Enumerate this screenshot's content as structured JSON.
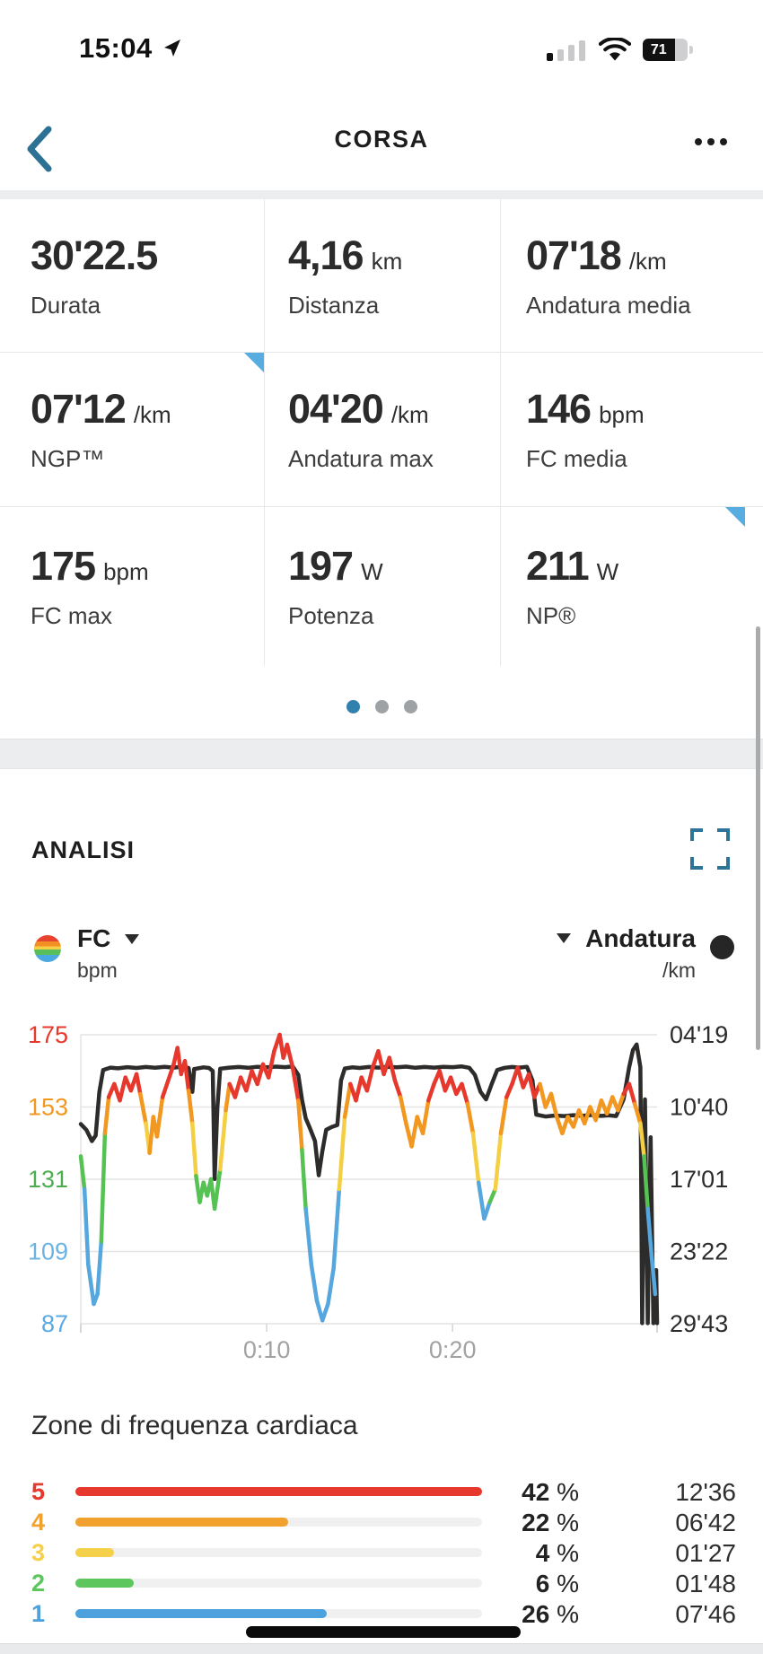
{
  "status_bar": {
    "time": "15:04",
    "battery_percent": "71"
  },
  "nav": {
    "title": "CORSA"
  },
  "stats": {
    "cells": [
      {
        "value": "30'22.5",
        "unit": "",
        "label": "Durata",
        "corner": false
      },
      {
        "value": "4,16",
        "unit": "km",
        "label": "Distanza",
        "corner": false
      },
      {
        "value": "07'18",
        "unit": "/km",
        "label": "Andatura media",
        "corner": false
      },
      {
        "value": "07'12",
        "unit": "/km",
        "label": "NGP™",
        "corner": true
      },
      {
        "value": "04'20",
        "unit": "/km",
        "label": "Andatura max",
        "corner": false
      },
      {
        "value": "146",
        "unit": "bpm",
        "label": "FC media",
        "corner": false
      },
      {
        "value": "175",
        "unit": "bpm",
        "label": "FC max",
        "corner": false
      },
      {
        "value": "197",
        "unit": "W",
        "label": "Potenza",
        "corner": false
      },
      {
        "value": "211",
        "unit": "W",
        "label": "NP®",
        "corner": true
      }
    ],
    "pager": {
      "count": 3,
      "active_index": 0,
      "active_color": "#3180ad",
      "inactive_color": "#9fa2a4"
    }
  },
  "analysis": {
    "title": "ANALISI",
    "left_metric": {
      "name": "FC",
      "unit": "bpm"
    },
    "right_metric": {
      "name": "Andatura",
      "unit": "/km"
    }
  },
  "chart_data": {
    "type": "line",
    "x_axis": {
      "max_minutes": 31,
      "ticks": [
        {
          "label": "0:10",
          "minutes": 10
        },
        {
          "label": "0:20",
          "minutes": 20
        }
      ]
    },
    "hr_axis": {
      "max": 175,
      "min": 87,
      "ticks": [
        175,
        153,
        131,
        109,
        87
      ],
      "tick_colors": [
        "#e6382c",
        "#f2971f",
        "#4cae50",
        "#6cb3e2",
        "#5aa9e0"
      ]
    },
    "pace_axis": {
      "min_seconds": 259,
      "max_seconds": 1783,
      "ticks": [
        {
          "label": "04'19",
          "seconds": 259
        },
        {
          "label": "10'40",
          "seconds": 640
        },
        {
          "label": "17'01",
          "seconds": 1021
        },
        {
          "label": "23'22",
          "seconds": 1402
        },
        {
          "label": "29'43",
          "seconds": 1783
        }
      ]
    },
    "hr_zone_colors": [
      {
        "min": 157,
        "color": "#e6382c"
      },
      {
        "min": 144,
        "color": "#f2971f"
      },
      {
        "min": 136,
        "color": "#f5cf43"
      },
      {
        "min": 126,
        "color": "#55c253"
      },
      {
        "min": 0,
        "color": "#55a7de"
      }
    ],
    "grid_color": "#e4e4e4",
    "x_label_color": "#a2a2a2",
    "pace_line_color": "#2d2c2b",
    "series": [
      {
        "name": "FC",
        "unit": "bpm",
        "points": [
          [
            0,
            138
          ],
          [
            0.2,
            128
          ],
          [
            0.4,
            105
          ],
          [
            0.7,
            93
          ],
          [
            0.9,
            96
          ],
          [
            1.1,
            112
          ],
          [
            1.3,
            145
          ],
          [
            1.5,
            156
          ],
          [
            1.8,
            160
          ],
          [
            2.1,
            155
          ],
          [
            2.4,
            162
          ],
          [
            2.7,
            158
          ],
          [
            3.0,
            163
          ],
          [
            3.2,
            157
          ],
          [
            3.5,
            148
          ],
          [
            3.7,
            139
          ],
          [
            3.9,
            150
          ],
          [
            4.1,
            144
          ],
          [
            4.4,
            156
          ],
          [
            4.7,
            161
          ],
          [
            5.0,
            166
          ],
          [
            5.2,
            171
          ],
          [
            5.4,
            163
          ],
          [
            5.6,
            167
          ],
          [
            5.8,
            158
          ],
          [
            6.0,
            148
          ],
          [
            6.2,
            132
          ],
          [
            6.4,
            124
          ],
          [
            6.6,
            130
          ],
          [
            6.8,
            126
          ],
          [
            7.0,
            131
          ],
          [
            7.2,
            122
          ],
          [
            7.5,
            134
          ],
          [
            7.8,
            152
          ],
          [
            8.0,
            160
          ],
          [
            8.3,
            156
          ],
          [
            8.6,
            162
          ],
          [
            8.9,
            158
          ],
          [
            9.2,
            164
          ],
          [
            9.5,
            160
          ],
          [
            9.8,
            166
          ],
          [
            10.1,
            162
          ],
          [
            10.4,
            170
          ],
          [
            10.7,
            175
          ],
          [
            10.9,
            168
          ],
          [
            11.1,
            172
          ],
          [
            11.4,
            165
          ],
          [
            11.7,
            155
          ],
          [
            11.9,
            140
          ],
          [
            12.1,
            122
          ],
          [
            12.4,
            105
          ],
          [
            12.7,
            94
          ],
          [
            13.0,
            88
          ],
          [
            13.3,
            93
          ],
          [
            13.6,
            104
          ],
          [
            13.9,
            128
          ],
          [
            14.2,
            150
          ],
          [
            14.5,
            160
          ],
          [
            14.8,
            155
          ],
          [
            15.1,
            162
          ],
          [
            15.4,
            158
          ],
          [
            15.7,
            165
          ],
          [
            16.0,
            170
          ],
          [
            16.3,
            163
          ],
          [
            16.6,
            168
          ],
          [
            16.9,
            161
          ],
          [
            17.2,
            156
          ],
          [
            17.5,
            148
          ],
          [
            17.8,
            141
          ],
          [
            18.1,
            150
          ],
          [
            18.4,
            145
          ],
          [
            18.7,
            155
          ],
          [
            19.0,
            160
          ],
          [
            19.3,
            164
          ],
          [
            19.6,
            158
          ],
          [
            19.9,
            162
          ],
          [
            20.2,
            157
          ],
          [
            20.5,
            160
          ],
          [
            20.8,
            154
          ],
          [
            21.1,
            145
          ],
          [
            21.4,
            130
          ],
          [
            21.7,
            119
          ],
          [
            22.0,
            124
          ],
          [
            22.3,
            128
          ],
          [
            22.6,
            145
          ],
          [
            22.9,
            156
          ],
          [
            23.2,
            160
          ],
          [
            23.5,
            165
          ],
          [
            23.8,
            159
          ],
          [
            24.1,
            163
          ],
          [
            24.4,
            156
          ],
          [
            24.7,
            160
          ],
          [
            25.0,
            153
          ],
          [
            25.3,
            157
          ],
          [
            25.6,
            150
          ],
          [
            25.9,
            145
          ],
          [
            26.2,
            150
          ],
          [
            26.5,
            147
          ],
          [
            26.8,
            152
          ],
          [
            27.1,
            148
          ],
          [
            27.4,
            153
          ],
          [
            27.7,
            149
          ],
          [
            28.0,
            155
          ],
          [
            28.3,
            151
          ],
          [
            28.6,
            156
          ],
          [
            28.9,
            152
          ],
          [
            29.2,
            157
          ],
          [
            29.5,
            160
          ],
          [
            29.8,
            154
          ],
          [
            30.1,
            148
          ],
          [
            30.3,
            138
          ],
          [
            30.5,
            122
          ],
          [
            30.7,
            108
          ],
          [
            30.9,
            96
          ]
        ]
      },
      {
        "name": "Andatura",
        "unit": "/km",
        "points": [
          [
            0,
            730
          ],
          [
            0.3,
            760
          ],
          [
            0.6,
            820
          ],
          [
            0.8,
            790
          ],
          [
            1.0,
            560
          ],
          [
            1.2,
            445
          ],
          [
            1.6,
            432
          ],
          [
            2.0,
            436
          ],
          [
            2.5,
            430
          ],
          [
            3.0,
            434
          ],
          [
            3.5,
            429
          ],
          [
            4.0,
            433
          ],
          [
            4.5,
            428
          ],
          [
            5.0,
            432
          ],
          [
            5.5,
            427
          ],
          [
            5.8,
            434
          ],
          [
            6.0,
            560
          ],
          [
            6.1,
            440
          ],
          [
            6.3,
            436
          ],
          [
            6.6,
            431
          ],
          [
            6.9,
            434
          ],
          [
            7.1,
            450
          ],
          [
            7.2,
            1020
          ],
          [
            7.35,
            640
          ],
          [
            7.5,
            438
          ],
          [
            8.0,
            432
          ],
          [
            8.5,
            429
          ],
          [
            9.0,
            433
          ],
          [
            9.5,
            428
          ],
          [
            10.0,
            431
          ],
          [
            10.5,
            427
          ],
          [
            11.0,
            430
          ],
          [
            11.4,
            426
          ],
          [
            11.7,
            470
          ],
          [
            11.9,
            600
          ],
          [
            12.1,
            700
          ],
          [
            12.3,
            745
          ],
          [
            12.6,
            820
          ],
          [
            12.8,
            1000
          ],
          [
            13.0,
            870
          ],
          [
            13.2,
            760
          ],
          [
            13.5,
            745
          ],
          [
            13.8,
            735
          ],
          [
            14.0,
            500
          ],
          [
            14.2,
            437
          ],
          [
            14.6,
            431
          ],
          [
            15.0,
            434
          ],
          [
            15.5,
            429
          ],
          [
            16.0,
            432
          ],
          [
            16.5,
            428
          ],
          [
            17.0,
            431
          ],
          [
            17.5,
            427
          ],
          [
            18.0,
            433
          ],
          [
            18.5,
            429
          ],
          [
            19.0,
            432
          ],
          [
            19.5,
            428
          ],
          [
            20.0,
            430
          ],
          [
            20.5,
            426
          ],
          [
            20.9,
            433
          ],
          [
            21.2,
            470
          ],
          [
            21.5,
            560
          ],
          [
            21.8,
            600
          ],
          [
            22.1,
            520
          ],
          [
            22.4,
            445
          ],
          [
            22.8,
            433
          ],
          [
            23.2,
            429
          ],
          [
            23.6,
            432
          ],
          [
            24.0,
            428
          ],
          [
            24.3,
            500
          ],
          [
            24.5,
            680
          ],
          [
            25.0,
            690
          ],
          [
            25.5,
            685
          ],
          [
            26.0,
            688
          ],
          [
            26.5,
            683
          ],
          [
            27.0,
            686
          ],
          [
            27.5,
            682
          ],
          [
            28.0,
            687
          ],
          [
            28.4,
            684
          ],
          [
            28.8,
            688
          ],
          [
            29.2,
            600
          ],
          [
            29.5,
            430
          ],
          [
            29.7,
            340
          ],
          [
            29.9,
            310
          ],
          [
            30.1,
            430
          ],
          [
            30.2,
            1780
          ],
          [
            30.35,
            600
          ],
          [
            30.5,
            1780
          ],
          [
            30.65,
            800
          ],
          [
            30.8,
            1780
          ],
          [
            30.95,
            1500
          ],
          [
            31.0,
            1780
          ]
        ]
      }
    ]
  },
  "zones": {
    "title": "Zone di frequenza cardiaca",
    "percent_suffix": "%",
    "rows": [
      {
        "zone": "5",
        "color": "#e6382c",
        "percent": "42",
        "percent_value": 42,
        "time": "12'36"
      },
      {
        "zone": "4",
        "color": "#f0a12e",
        "percent": "22",
        "percent_value": 22,
        "time": "06'42"
      },
      {
        "zone": "3",
        "color": "#f5d04a",
        "percent": "4",
        "percent_value": 4,
        "time": "01'27"
      },
      {
        "zone": "2",
        "color": "#5dc75d",
        "percent": "6",
        "percent_value": 6,
        "time": "01'48"
      },
      {
        "zone": "1",
        "color": "#4da2de",
        "percent": "26",
        "percent_value": 26,
        "time": "07'46"
      }
    ]
  }
}
